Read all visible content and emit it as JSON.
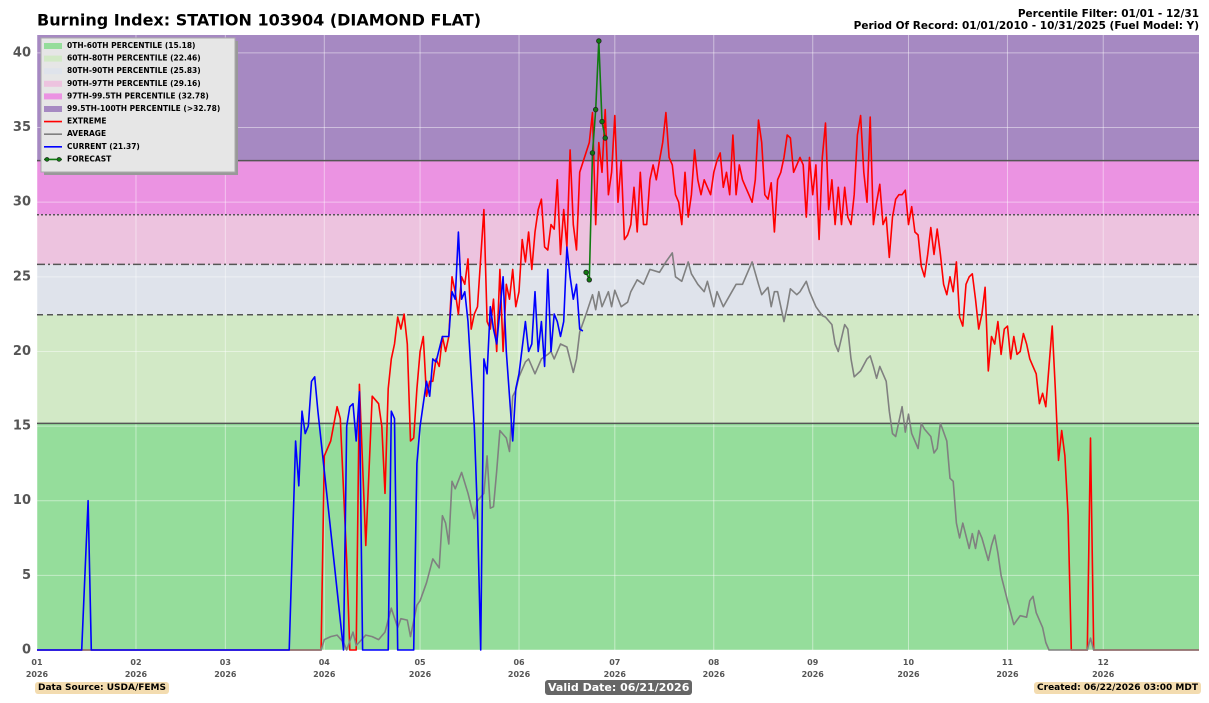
{
  "chart_data": {
    "type": "line",
    "title": "Burning Index: STATION 103904 (DIAMOND FLAT)",
    "percentile_filter": "Percentile Filter: 01/01 - 12/31",
    "period_of_record": "Period Of Record: 01/01/2010 - 10/31/2025 (Fuel Model: Y)",
    "data_source": "Data Source: USDA/FEMS",
    "valid_date": "Valid Date: 06/21/2026",
    "created": "Created: 06/22/2026 03:00 MDT",
    "xlim": [
      0,
      364
    ],
    "xticks": [
      {
        "value": 0,
        "label": "01\n2026"
      },
      {
        "value": 31,
        "label": "02\n2026"
      },
      {
        "value": 59,
        "label": "03\n2026"
      },
      {
        "value": 90,
        "label": "04\n2026"
      },
      {
        "value": 120,
        "label": "05\n2026"
      },
      {
        "value": 151,
        "label": "06\n2026"
      },
      {
        "value": 181,
        "label": "07\n2026"
      },
      {
        "value": 212,
        "label": "08\n2026"
      },
      {
        "value": 243,
        "label": "09\n2026"
      },
      {
        "value": 273,
        "label": "10\n2026"
      },
      {
        "value": 304,
        "label": "11\n2026"
      },
      {
        "value": 334,
        "label": "12\n2026"
      }
    ],
    "ylim": [
      0,
      41.2
    ],
    "yticks": [
      0,
      5,
      10,
      15,
      20,
      25,
      30,
      35,
      40
    ],
    "grid": true,
    "legend_position": "upper-left",
    "thresholds": [
      15.18,
      22.46,
      25.83,
      29.16,
      32.78
    ],
    "threshold_styles": [
      "solid",
      "dashed",
      "dashdot",
      "dotted",
      "solid"
    ],
    "bands": [
      {
        "name": "0TH-60TH PERCENTILE (15.18)",
        "color": "#95dd9b"
      },
      {
        "name": "60TH-80TH PERCENTILE (22.46)",
        "color": "#d2e9c6"
      },
      {
        "name": "80TH-90TH PERCENTILE (25.83)",
        "color": "#dfe3eb"
      },
      {
        "name": "90TH-97TH PERCENTILE (29.16)",
        "color": "#edc3df"
      },
      {
        "name": "97TH-99.5TH PERCENTILE (32.78)",
        "color": "#eb93e2"
      },
      {
        "name": "99.5TH-100TH PERCENTILE (>32.78)",
        "color": "#a689c2"
      }
    ],
    "series": [
      {
        "name": "EXTREME",
        "color": "#ff0000",
        "x": [
          0,
          89,
          90,
          92,
          94,
          95,
          97,
          98,
          100,
          101,
          103,
          104,
          105,
          107,
          108,
          109,
          110,
          111,
          112,
          113,
          114,
          115,
          116,
          117,
          118,
          119,
          120,
          121,
          122,
          123,
          124,
          125,
          126,
          127,
          128,
          129,
          130,
          131,
          132,
          133,
          134,
          135,
          136,
          137,
          138,
          140,
          141,
          142,
          143,
          144,
          145,
          146,
          147,
          148,
          149,
          150,
          151,
          152,
          153,
          154,
          155,
          156,
          157,
          158,
          159,
          160,
          161,
          162,
          163,
          164,
          165,
          166,
          167,
          168,
          169,
          170,
          173,
          174,
          175,
          176,
          177,
          178,
          179,
          180,
          181,
          182,
          183,
          184,
          185,
          186,
          187,
          188,
          189,
          190,
          191,
          192,
          193,
          194,
          195,
          196,
          197,
          198,
          199,
          200,
          201,
          202,
          203,
          204,
          205,
          206,
          207,
          208,
          209,
          210,
          211,
          212,
          213,
          214,
          215,
          216,
          217,
          218,
          219,
          220,
          221,
          222,
          223,
          224,
          225,
          226,
          227,
          228,
          229,
          230,
          231,
          232,
          233,
          234,
          235,
          236,
          237,
          238,
          239,
          240,
          241,
          242,
          243,
          244,
          245,
          246,
          247,
          248,
          249,
          250,
          251,
          252,
          253,
          254,
          255,
          256,
          257,
          258,
          259,
          260,
          261,
          262,
          263,
          264,
          265,
          266,
          267,
          268,
          269,
          270,
          271,
          272,
          273,
          274,
          275,
          276,
          277,
          278,
          279,
          280,
          281,
          282,
          283,
          284,
          285,
          286,
          287,
          288,
          289,
          290,
          291,
          292,
          293,
          294,
          295,
          296,
          297,
          298,
          299,
          300,
          301,
          302,
          303,
          304,
          305,
          306,
          307,
          308,
          309,
          310,
          311,
          312,
          313,
          314,
          315,
          316,
          317,
          318,
          319,
          320,
          321,
          322,
          323,
          324,
          329,
          330,
          331,
          364
        ],
        "values": [
          0,
          0,
          13,
          14,
          16.3,
          15.5,
          6,
          0,
          0,
          17.8,
          7,
          12,
          17,
          16.5,
          15,
          10.5,
          17.5,
          19.5,
          20.5,
          22.3,
          21.5,
          22.5,
          20.5,
          14,
          14.2,
          17.5,
          20,
          21,
          17,
          18,
          18,
          19.5,
          19,
          21,
          20,
          21,
          25,
          24,
          22.5,
          25,
          24.5,
          26.2,
          21.5,
          22.5,
          23,
          29.5,
          22,
          21.5,
          23.5,
          20,
          25.5,
          20,
          24.5,
          23.5,
          25.5,
          23,
          24,
          27.5,
          26,
          28,
          25.5,
          28,
          29.5,
          30.2,
          27,
          26.8,
          28.5,
          28.2,
          31.5,
          26.5,
          29.5,
          27,
          33.5,
          28.5,
          26.8,
          32,
          34,
          36,
          28.5,
          34,
          32,
          36.2,
          30.5,
          32,
          35.8,
          30,
          32.8,
          27.5,
          27.8,
          28.5,
          31,
          28,
          32,
          28.5,
          28.5,
          31.5,
          32.5,
          31.5,
          32.8,
          34,
          36,
          33,
          32.5,
          30.5,
          30,
          28.5,
          32,
          29,
          30.5,
          33.5,
          31.5,
          30.5,
          31.5,
          31,
          30.5,
          32,
          32.8,
          33.3,
          31,
          32,
          30.5,
          34.5,
          30.5,
          32.5,
          31.5,
          31,
          30.5,
          30,
          31.5,
          35.5,
          34,
          30.5,
          30.2,
          31.3,
          28,
          31.5,
          32,
          33,
          34.5,
          34.3,
          32,
          32.5,
          33,
          32.5,
          29,
          33,
          30.5,
          32.5,
          27.5,
          33,
          35.3,
          29.5,
          31.5,
          28.5,
          31,
          28.5,
          31,
          29,
          28.5,
          30.5,
          34.5,
          35.8,
          32,
          30,
          35.7,
          28.5,
          30,
          31.2,
          28.5,
          29,
          26.3,
          29,
          30.2,
          30.5,
          30.5,
          30.8,
          28.5,
          29.7,
          28,
          27.8,
          25.7,
          25,
          26.5,
          28.3,
          26.5,
          28.2,
          26.5,
          24.5,
          23.8,
          25,
          24,
          26,
          22.3,
          21.7,
          24.5,
          25,
          25.2,
          23.5,
          21.5,
          22.5,
          24.3,
          18.7,
          21,
          20.5,
          22,
          19.8,
          21.5,
          21.7,
          19.5,
          21,
          19.8,
          20,
          21.2,
          20.5,
          19.5,
          19,
          18.5,
          16.5,
          17.2,
          16.3,
          19,
          21.7,
          17.5,
          12.7,
          14.7,
          13,
          9,
          0,
          0,
          14.2,
          0,
          0
        ]
      },
      {
        "name": "AVERAGE",
        "color": "#808080",
        "x": [
          0,
          89,
          90,
          92,
          94,
          96,
          97,
          99,
          100,
          103,
          105,
          107,
          109,
          111,
          113,
          114,
          116,
          117,
          119,
          120,
          122,
          124,
          126,
          127,
          128,
          129,
          130,
          131,
          133,
          135,
          137,
          138,
          140,
          141,
          142,
          143,
          144,
          145,
          147,
          148,
          149,
          150,
          151,
          153,
          154,
          156,
          158,
          160,
          161,
          162,
          164,
          166,
          168,
          169,
          170,
          172,
          174,
          175,
          176,
          177,
          179,
          180,
          181,
          183,
          185,
          186,
          188,
          190,
          192,
          195,
          197,
          199,
          200,
          202,
          204,
          205,
          207,
          209,
          210,
          212,
          213,
          215,
          219,
          221,
          223,
          224,
          226,
          227,
          229,
          230,
          231,
          232,
          234,
          235,
          236,
          238,
          239,
          241,
          242,
          244,
          246,
          247,
          249,
          250,
          251,
          253,
          254,
          255,
          256,
          258,
          260,
          261,
          262,
          263,
          264,
          266,
          267,
          268,
          269,
          271,
          272,
          273,
          274,
          276,
          277,
          278,
          280,
          281,
          282,
          283,
          285,
          286,
          287,
          288,
          289,
          290,
          292,
          293,
          294,
          295,
          296,
          298,
          299,
          300,
          301,
          302,
          304,
          305,
          306,
          307,
          308,
          310,
          311,
          312,
          313,
          315,
          316,
          317,
          329,
          330,
          331,
          364
        ],
        "values": [
          0,
          0,
          0.7,
          0.9,
          1.0,
          0.5,
          0,
          1.2,
          0.3,
          1.0,
          0.9,
          0.7,
          1.2,
          2.8,
          1.5,
          2.1,
          2.0,
          0.9,
          3.0,
          3.3,
          4.5,
          6.1,
          5.5,
          9.0,
          8.5,
          7.1,
          11.3,
          10.8,
          11.9,
          10.5,
          8.8,
          10.0,
          10.5,
          13.0,
          9.5,
          9.6,
          12.0,
          14.7,
          14.2,
          13.3,
          17.0,
          17.4,
          18.3,
          19.3,
          19.5,
          18.5,
          19.5,
          19.8,
          20.0,
          19.5,
          20.5,
          20.3,
          18.6,
          19.5,
          21.3,
          22.5,
          23.8,
          22.8,
          24.0,
          23.0,
          24.0,
          23.0,
          24.1,
          23.0,
          23.3,
          24.0,
          24.8,
          24.5,
          25.5,
          25.3,
          26.0,
          26.6,
          25.0,
          24.7,
          26.0,
          25.2,
          24.5,
          24.0,
          24.7,
          23.0,
          24.0,
          23.0,
          24.5,
          24.5,
          25.5,
          26.0,
          24.5,
          23.8,
          24.3,
          23.0,
          24.0,
          24.0,
          22.0,
          23.0,
          24.2,
          23.8,
          24.0,
          24.7,
          24.0,
          23.0,
          22.4,
          22.3,
          21.8,
          20.5,
          20.0,
          21.8,
          21.5,
          19.5,
          18.3,
          18.7,
          19.5,
          19.7,
          19.0,
          18.2,
          19.0,
          18.0,
          16.0,
          14.5,
          14.3,
          16.3,
          14.6,
          15.8,
          14.5,
          13.5,
          15.2,
          14.8,
          14.3,
          13.2,
          13.5,
          15.2,
          14.0,
          11.5,
          11.3,
          8.5,
          7.5,
          8.5,
          6.8,
          7.8,
          6.8,
          8.0,
          7.5,
          6.0,
          7.0,
          7.7,
          6.5,
          5.0,
          3.3,
          2.5,
          1.7,
          2.0,
          2.3,
          2.2,
          3.3,
          3.6,
          2.5,
          1.5,
          0.5,
          0,
          0,
          0.8,
          0,
          0
        ]
      },
      {
        "name": "CURRENT (21.37)",
        "color": "#0000ff",
        "x": [
          0,
          14,
          16,
          17,
          79,
          81,
          82,
          83,
          84,
          85,
          86,
          87,
          88,
          90,
          96,
          97,
          98,
          99,
          100,
          101,
          102,
          110,
          111,
          112,
          113,
          118,
          119,
          120,
          122,
          123,
          124,
          125,
          127,
          129,
          130,
          131,
          132,
          133,
          134,
          135,
          137,
          138,
          139,
          140,
          141,
          142,
          143,
          144,
          146,
          147,
          149,
          150,
          151,
          153,
          154,
          155,
          156,
          157,
          158,
          159,
          160,
          161,
          162,
          163,
          164,
          165,
          166,
          167,
          168,
          169,
          170,
          171
        ],
        "values": [
          0,
          0,
          10,
          0,
          0,
          14,
          11,
          16,
          14.5,
          15,
          18,
          18.3,
          16,
          12,
          0,
          15,
          16.3,
          16.5,
          14,
          17.3,
          0,
          0,
          16,
          15.5,
          0,
          0,
          12.5,
          15,
          18,
          17,
          19.5,
          19.3,
          21,
          21,
          24,
          23.5,
          28,
          23.5,
          24,
          22,
          15,
          9,
          0,
          19.5,
          18.5,
          23,
          21.5,
          20.5,
          25,
          20,
          14,
          17.5,
          18.5,
          22,
          20,
          20.5,
          24,
          20,
          22,
          19,
          25.5,
          20,
          22.5,
          22,
          21,
          22,
          27,
          25,
          23.5,
          24.5,
          21.5,
          21.37
        ]
      },
      {
        "name": "FORECAST",
        "color": "#117a11",
        "marker": "circle",
        "x": [
          172,
          173,
          174,
          175,
          176,
          177,
          178
        ],
        "values": [
          25.3,
          24.8,
          33.3,
          36.2,
          40.8,
          35.4,
          34.3
        ]
      }
    ]
  }
}
